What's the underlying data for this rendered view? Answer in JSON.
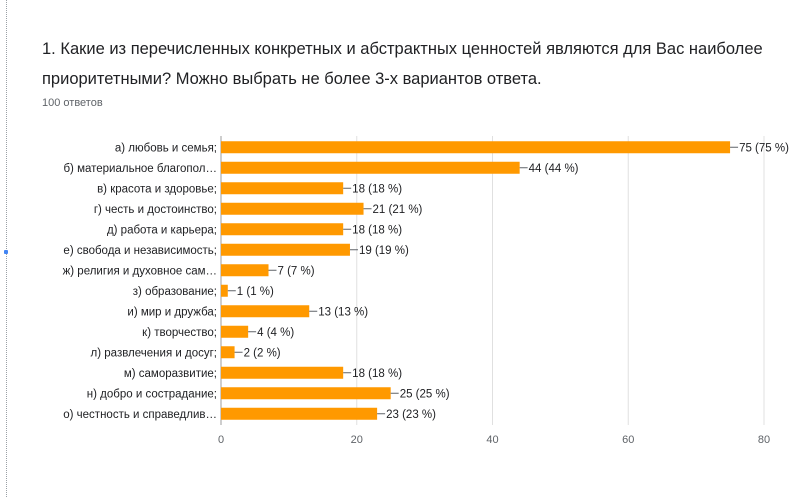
{
  "question": {
    "title": "1. Какие из перечисленных конкретных и абстрактных ценностей являются для Вас наиболее приоритетными? Можно выбрать не более 3-х вариантов ответа.",
    "responses": "100 ответов"
  },
  "colors": {
    "bar": "#ff9900",
    "grid": "#e0e0e0",
    "axis": "#5f6368",
    "text": "#202124"
  },
  "chart_data": {
    "type": "bar",
    "orientation": "horizontal",
    "categories": [
      "а) любовь и семья;",
      "б) материальное благопол…",
      "в) красота и здоровье;",
      "г) честь и достоинство;",
      "д) работа и карьера;",
      "е) свобода и независимость;",
      "ж) религия и духовное сам…",
      "з) образование;",
      "и) мир и дружба;",
      "к) творчество;",
      "л) развлечения и досуг;",
      "м) саморазвитие;",
      "н) добро и сострадание;",
      "о) честность и справедлив…"
    ],
    "values": [
      75,
      44,
      18,
      21,
      18,
      19,
      7,
      1,
      13,
      4,
      2,
      18,
      25,
      23
    ],
    "data_labels": [
      "75 (75 %)",
      "44 (44 %)",
      "18 (18 %)",
      "21 (21 %)",
      "18 (18 %)",
      "19 (19 %)",
      "7 (7 %)",
      "1 (1 %)",
      "13 (13 %)",
      "4 (4 %)",
      "2 (2 %)",
      "18 (18 %)",
      "25 (25 %)",
      "23 (23 %)"
    ],
    "xlim": [
      0,
      80
    ],
    "xticks": [
      0,
      20,
      40,
      60,
      80
    ],
    "grid": true,
    "legend": "none"
  }
}
